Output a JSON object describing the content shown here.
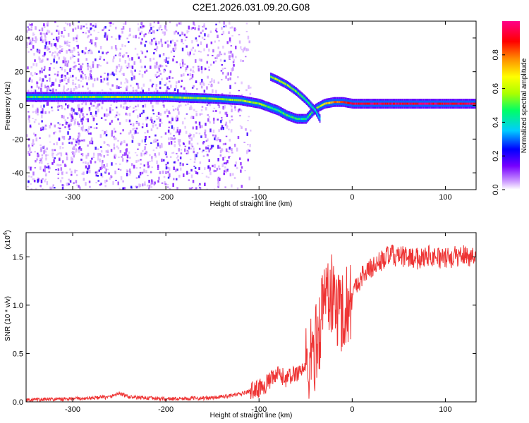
{
  "title": "C2E1.2026.031.09.20.G08",
  "chart_data": [
    {
      "type": "heatmap",
      "xlabel": "Height of straight line (km)",
      "ylabel": "Frequency (Hz)",
      "xlim": [
        -350,
        133
      ],
      "ylim": [
        -50,
        50
      ],
      "xticks": [
        -300,
        -200,
        -100,
        0,
        100
      ],
      "xtick_labels": [
        "-300",
        "-200",
        "-100",
        "0",
        "100"
      ],
      "yticks": [
        -40,
        -20,
        0,
        20,
        40
      ],
      "ytick_labels": [
        "-40",
        "-20",
        "0",
        "20",
        "40"
      ],
      "colorbar": {
        "label": "Normalized spectral amplitude",
        "range": [
          0,
          1
        ],
        "ticks": [
          0.0,
          0.2,
          0.4,
          0.6,
          0.8
        ],
        "tick_labels": [
          "0.0",
          "0.2",
          "0.4",
          "0.6",
          "0.8"
        ],
        "colors": [
          "#ffffff",
          "#cc99ff",
          "#7700ff",
          "#0000ff",
          "#00ccff",
          "#00ff66",
          "#aaff00",
          "#ffff00",
          "#ff8800",
          "#ff0000",
          "#ff0088"
        ]
      },
      "main_track": {
        "x": [
          -350,
          -300,
          -250,
          -200,
          -150,
          -120,
          -100,
          -90,
          -80,
          -70,
          -60,
          -50,
          -40,
          -30,
          -20,
          -10,
          0,
          50,
          100,
          133
        ],
        "frequency": [
          5,
          5,
          5,
          5,
          4,
          3,
          1,
          -1,
          -3,
          -6,
          -8,
          -8,
          -2,
          1,
          2,
          2,
          1,
          1,
          1,
          1
        ],
        "amplitude": [
          0.5,
          0.55,
          0.6,
          0.6,
          0.6,
          0.6,
          0.6,
          0.5,
          0.5,
          0.55,
          0.5,
          0.45,
          0.6,
          0.7,
          0.8,
          0.9,
          0.95,
          0.95,
          0.95,
          0.95
        ]
      },
      "secondary_track": {
        "x": [
          -88,
          -80,
          -70,
          -60,
          -50,
          -40,
          -35
        ],
        "frequency": [
          17,
          15,
          12,
          8,
          3,
          -3,
          -8
        ],
        "amplitude": [
          0.6,
          0.65,
          0.6,
          0.55,
          0.5,
          0.45,
          0.4
        ]
      }
    },
    {
      "type": "line",
      "xlabel": "Height of straight line (km)",
      "ylabel": "SNR (10 * v/v)",
      "y_scale_label": "(x10",
      "y_scale_exponent": "4",
      "xlim": [
        -350,
        133
      ],
      "ylim": [
        0,
        1.75
      ],
      "xticks": [
        -300,
        -200,
        -100,
        0,
        100
      ],
      "xtick_labels": [
        "-300",
        "-200",
        "-100",
        "0",
        "100"
      ],
      "yticks": [
        0.0,
        0.5,
        1.0,
        1.5
      ],
      "ytick_labels": [
        "0.0",
        "0.5",
        "1.0",
        "1.5"
      ],
      "color": "#ee3333",
      "series": [
        {
          "name": "SNR",
          "x": [
            -350,
            -300,
            -260,
            -250,
            -240,
            -200,
            -150,
            -120,
            -100,
            -90,
            -80,
            -70,
            -60,
            -50,
            -45,
            -40,
            -35,
            -30,
            -25,
            -20,
            -15,
            -10,
            -5,
            0,
            10,
            20,
            30,
            40,
            50,
            60,
            70,
            80,
            90,
            100,
            110,
            120,
            133
          ],
          "y": [
            0.02,
            0.03,
            0.05,
            0.09,
            0.05,
            0.03,
            0.04,
            0.08,
            0.14,
            0.2,
            0.28,
            0.24,
            0.3,
            0.36,
            0.42,
            0.55,
            0.75,
            1.1,
            1.15,
            1.05,
            0.95,
            0.95,
            1.0,
            1.12,
            1.3,
            1.38,
            1.45,
            1.52,
            1.5,
            1.5,
            1.48,
            1.52,
            1.5,
            1.48,
            1.5,
            1.52,
            1.5
          ]
        }
      ]
    }
  ]
}
